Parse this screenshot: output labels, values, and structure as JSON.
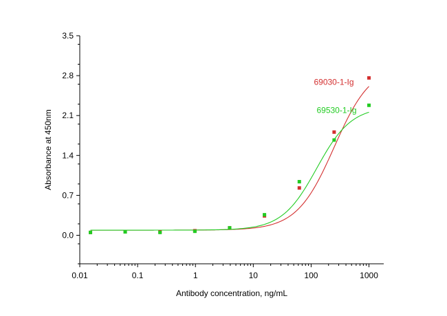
{
  "chart_data": {
    "type": "scatter",
    "xlabel": "Antibody concentration, ng/mL",
    "ylabel": "Absorbance at 450nm",
    "xscale": "log",
    "xlim": [
      0.01,
      1800
    ],
    "ylim": [
      -0.5,
      3.5
    ],
    "xticks": [
      {
        "value": 0.01,
        "label": "0.01"
      },
      {
        "value": 0.1,
        "label": "0.1"
      },
      {
        "value": 1,
        "label": "1"
      },
      {
        "value": 10,
        "label": "10"
      },
      {
        "value": 100,
        "label": "100"
      },
      {
        "value": 1000,
        "label": "1000"
      }
    ],
    "yticks": [
      {
        "value": 0,
        "label": "0.0"
      },
      {
        "value": 0.7,
        "label": "0.7"
      },
      {
        "value": 1.4,
        "label": "1.4"
      },
      {
        "value": 2.1,
        "label": "2.1"
      },
      {
        "value": 2.8,
        "label": "2.8"
      },
      {
        "value": 3.5,
        "label": "3.5"
      }
    ],
    "grid": false,
    "series": [
      {
        "name": "69030-1-Ig",
        "color": "#d32f2f",
        "x": [
          0.0153,
          0.061,
          0.244,
          0.977,
          3.9,
          15.6,
          62.5,
          250,
          1000
        ],
        "y": [
          0.05,
          0.06,
          0.06,
          0.08,
          0.13,
          0.34,
          0.83,
          1.81,
          2.76
        ],
        "fit": {
          "bottom": 0.09,
          "top": 3.0,
          "ec50": 250,
          "hill": 1.35
        }
      },
      {
        "name": "69530-1-Ig",
        "color": "#22cc22",
        "x": [
          0.0153,
          0.061,
          0.244,
          0.977,
          3.9,
          15.6,
          62.5,
          250,
          1000
        ],
        "y": [
          0.05,
          0.06,
          0.05,
          0.07,
          0.13,
          0.36,
          0.94,
          1.67,
          2.28
        ],
        "fit": {
          "bottom": 0.09,
          "top": 2.26,
          "ec50": 125,
          "hill": 1.45
        }
      }
    ]
  }
}
